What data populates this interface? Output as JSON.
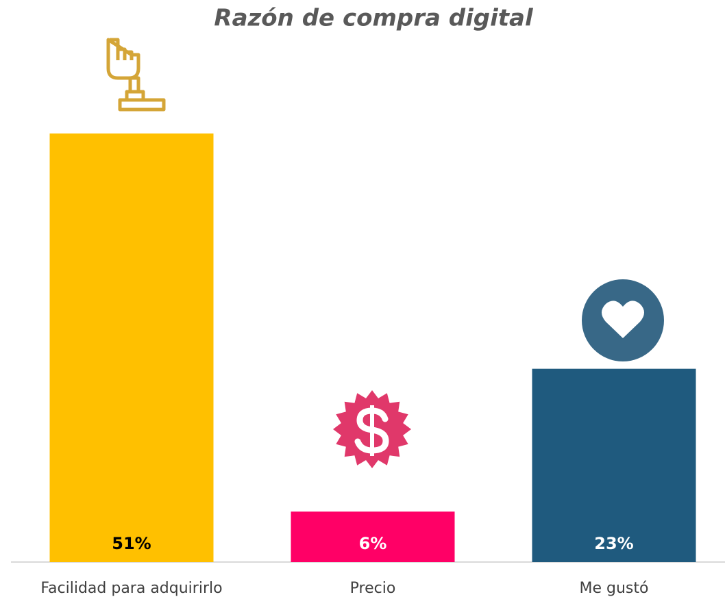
{
  "chart_data": {
    "type": "bar",
    "title": "Razón de compra digital",
    "categories": [
      "Facilidad para adquirirlo",
      "Precio",
      "Me gustó"
    ],
    "values": [
      51,
      6,
      23
    ],
    "value_labels": [
      "51%",
      "6%",
      "23%"
    ],
    "colors": [
      "#FFC000",
      "#FF0066",
      "#1F5A7E"
    ],
    "label_colors": [
      "#000000",
      "#FFFFFF",
      "#FFFFFF"
    ]
  }
}
